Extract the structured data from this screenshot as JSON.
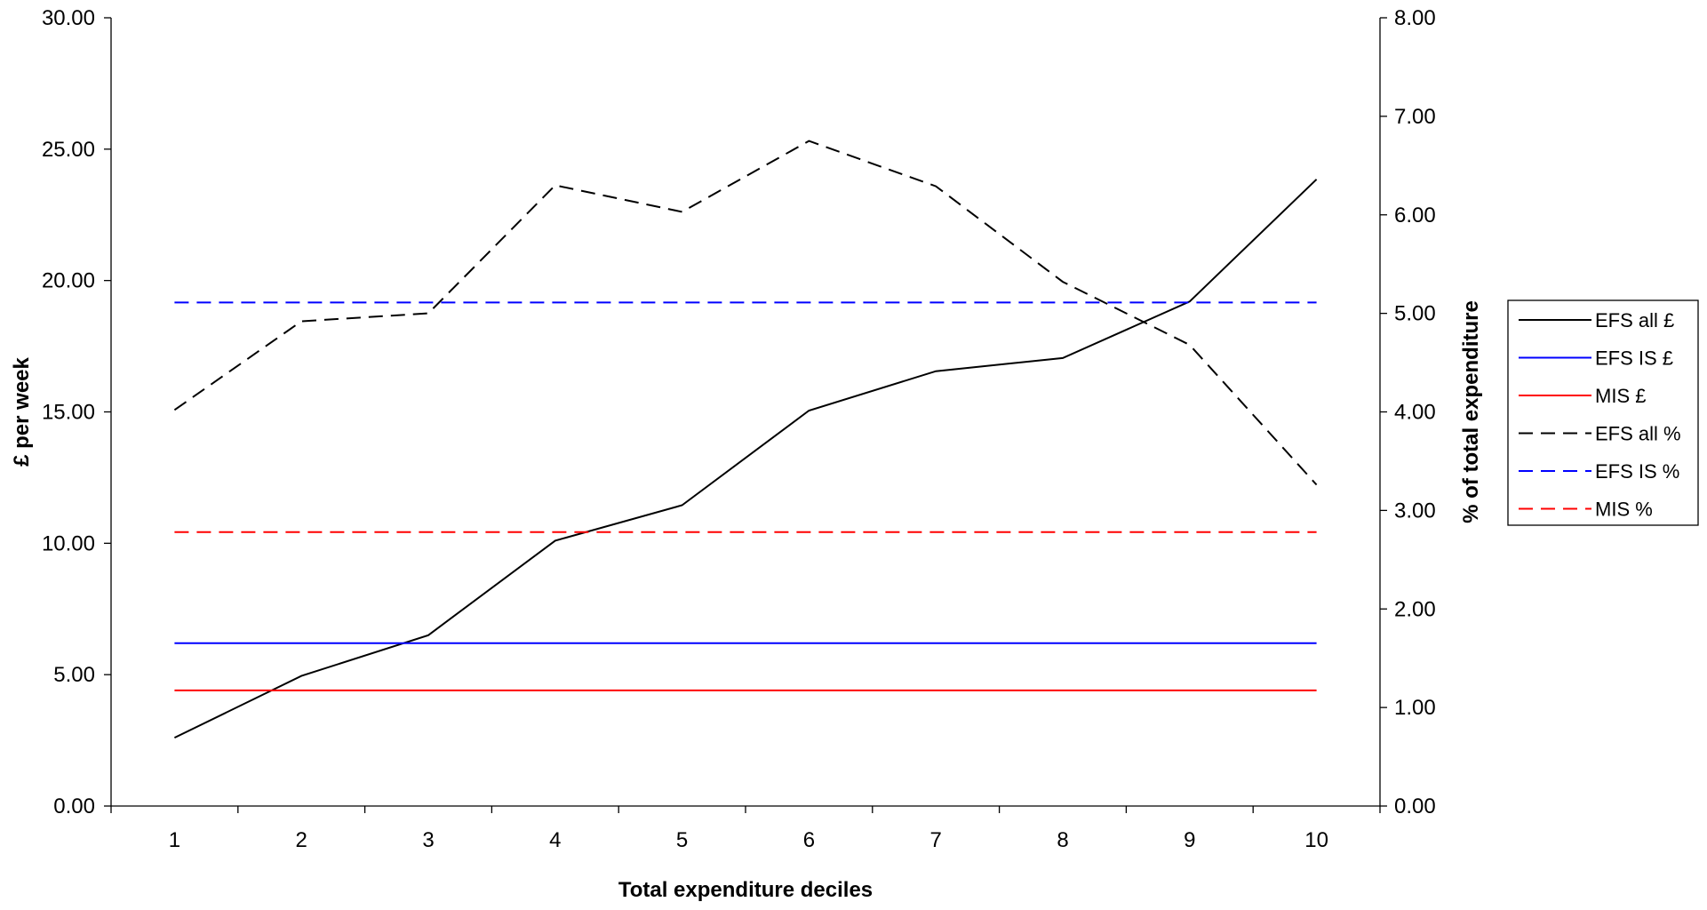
{
  "chart_data": {
    "type": "line",
    "title": "",
    "xlabel": "Total expenditure deciles",
    "ylabel": "£ per week",
    "y2label": "% of total expenditure",
    "categories": [
      "1",
      "2",
      "3",
      "4",
      "5",
      "6",
      "7",
      "8",
      "9",
      "10"
    ],
    "ylim": [
      0,
      30
    ],
    "y2lim": [
      0,
      8
    ],
    "yticks": [
      "0.00",
      "5.00",
      "10.00",
      "15.00",
      "20.00",
      "25.00",
      "30.00"
    ],
    "y2ticks": [
      "0.00",
      "1.00",
      "2.00",
      "3.00",
      "4.00",
      "5.00",
      "6.00",
      "7.00",
      "8.00"
    ],
    "grid": false,
    "legend_position": "right",
    "series": [
      {
        "name": "EFS all £",
        "axis": "left",
        "color": "#000000",
        "dash": "solid",
        "values": [
          2.6,
          4.95,
          6.5,
          10.1,
          11.45,
          15.05,
          16.55,
          17.05,
          19.2,
          23.85
        ]
      },
      {
        "name": "EFS IS £",
        "axis": "left",
        "color": "#0000ff",
        "dash": "solid",
        "values": [
          6.2,
          6.2,
          6.2,
          6.2,
          6.2,
          6.2,
          6.2,
          6.2,
          6.2,
          6.2
        ]
      },
      {
        "name": "MIS £",
        "axis": "left",
        "color": "#ff0000",
        "dash": "solid",
        "values": [
          4.4,
          4.4,
          4.4,
          4.4,
          4.4,
          4.4,
          4.4,
          4.4,
          4.4,
          4.4
        ]
      },
      {
        "name": "EFS all %",
        "axis": "right",
        "color": "#000000",
        "dash": "dashed",
        "values": [
          4.02,
          4.92,
          5.0,
          6.3,
          6.03,
          6.75,
          6.29,
          5.32,
          4.68,
          3.26
        ]
      },
      {
        "name": "EFS IS %",
        "axis": "right",
        "color": "#0000ff",
        "dash": "dashed",
        "values": [
          5.11,
          5.11,
          5.11,
          5.11,
          5.11,
          5.11,
          5.11,
          5.11,
          5.11,
          5.11
        ]
      },
      {
        "name": "MIS %",
        "axis": "right",
        "color": "#ff0000",
        "dash": "dashed",
        "values": [
          2.78,
          2.78,
          2.78,
          2.78,
          2.78,
          2.78,
          2.78,
          2.78,
          2.78,
          2.78
        ]
      }
    ]
  }
}
